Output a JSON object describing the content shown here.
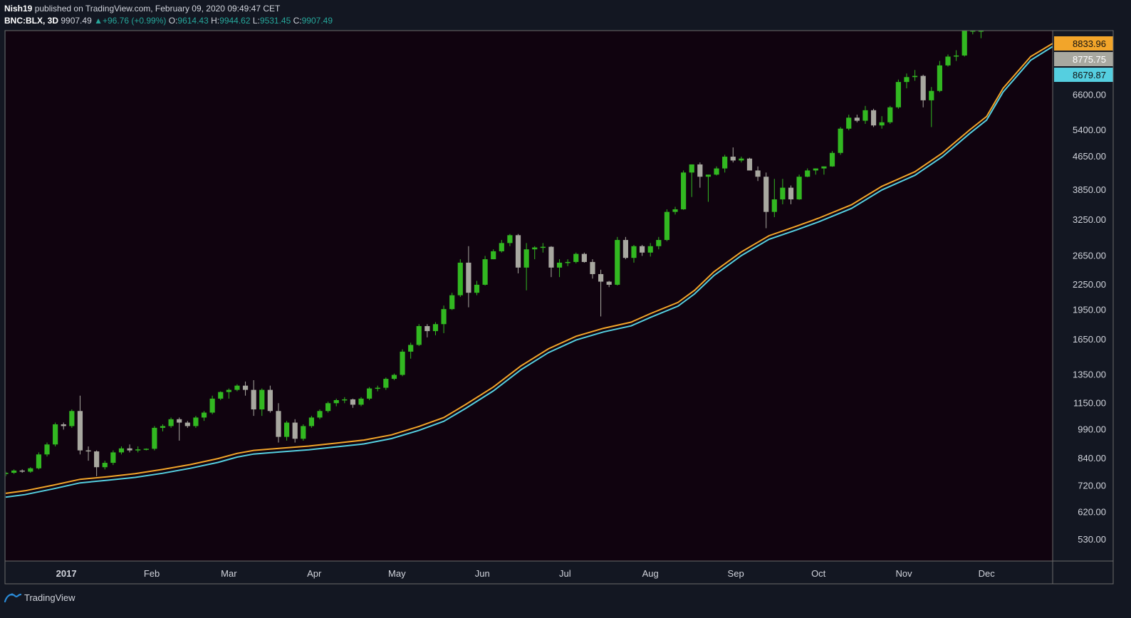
{
  "header": {
    "author": "Nish19",
    "published": "published on TradingView.com, February 09, 2020 09:49:47 CET",
    "symbol": "BNC:BLX, 3D",
    "last": "9907.49",
    "arrow": "▲",
    "change": "+96.76 (+0.99%)",
    "o_label": "O:",
    "o_value": "9614.43",
    "h_label": "H:",
    "h_value": "9944.62",
    "l_label": "L:",
    "l_value": "9531.45",
    "c_label": "C:",
    "c_value": "9907.49"
  },
  "footer": {
    "brand": "TradingView",
    "logo_icon": "tradingview-logo-icon"
  },
  "colors": {
    "background": "#10030f",
    "up": "#32b821",
    "down": "#a8a8a0",
    "ma_fast": "#f2a52a",
    "ma_slow": "#55cfe0",
    "axis_text": "#d1d4dc",
    "border": "#6b6b6b"
  },
  "chart_data": {
    "type": "candlestick",
    "scale": "log",
    "ylim": [
      470,
      9500
    ],
    "y_ticks": [
      "530.00",
      "620.00",
      "720.00",
      "840.00",
      "990.00",
      "1150.00",
      "1350.00",
      "1650.00",
      "1950.00",
      "2250.00",
      "2650.00",
      "3250.00",
      "3850.00",
      "4650.00",
      "5400.00",
      "6600.00"
    ],
    "price_labels": [
      {
        "text": "8833.96",
        "value": 8833.96,
        "series": "ma_fast"
      },
      {
        "text": "8775.75",
        "value": 8775.75,
        "series": "last"
      },
      {
        "text": "8679.87",
        "value": 8679.87,
        "series": "ma_slow"
      }
    ],
    "x_labels": [
      "2017",
      "Feb",
      "Mar",
      "Apr",
      "May",
      "Jun",
      "Jul",
      "Aug",
      "Sep",
      "Oct",
      "Nov",
      "Dec"
    ],
    "x_label_days": [
      0,
      31,
      59,
      90,
      120,
      151,
      181,
      212,
      243,
      273,
      304,
      334
    ],
    "x_range_days": [
      -22,
      358
    ],
    "candles_start_day": -22,
    "candle_interval_days": 3,
    "candles": [
      [
        770,
        780,
        760,
        775
      ],
      [
        775,
        790,
        770,
        785
      ],
      [
        785,
        790,
        775,
        780
      ],
      [
        780,
        800,
        775,
        795
      ],
      [
        795,
        870,
        790,
        860
      ],
      [
        860,
        920,
        850,
        910
      ],
      [
        910,
        1030,
        900,
        1020
      ],
      [
        1020,
        1030,
        990,
        1010
      ],
      [
        1010,
        1110,
        1000,
        1100
      ],
      [
        1100,
        1200,
        860,
        880
      ],
      [
        880,
        900,
        830,
        875
      ],
      [
        875,
        880,
        760,
        800
      ],
      [
        800,
        830,
        790,
        820
      ],
      [
        820,
        880,
        810,
        870
      ],
      [
        870,
        900,
        860,
        890
      ],
      [
        890,
        910,
        870,
        880
      ],
      [
        880,
        900,
        870,
        885
      ],
      [
        885,
        890,
        880,
        888
      ],
      [
        888,
        1010,
        880,
        1000
      ],
      [
        1000,
        1020,
        980,
        1010
      ],
      [
        1010,
        1060,
        1000,
        1050
      ],
      [
        1050,
        1060,
        930,
        1030
      ],
      [
        1030,
        1040,
        1000,
        1010
      ],
      [
        1010,
        1070,
        1000,
        1060
      ],
      [
        1060,
        1100,
        1040,
        1090
      ],
      [
        1090,
        1200,
        1080,
        1180
      ],
      [
        1180,
        1230,
        1170,
        1225
      ],
      [
        1225,
        1250,
        1180,
        1240
      ],
      [
        1240,
        1280,
        1230,
        1270
      ],
      [
        1270,
        1300,
        1200,
        1240
      ],
      [
        1240,
        1310,
        1070,
        1110
      ],
      [
        1110,
        1250,
        1070,
        1240
      ],
      [
        1240,
        1270,
        1090,
        1100
      ],
      [
        1100,
        1150,
        920,
        950
      ],
      [
        950,
        1040,
        930,
        1030
      ],
      [
        1030,
        1050,
        920,
        940
      ],
      [
        940,
        1020,
        930,
        1010
      ],
      [
        1010,
        1070,
        1000,
        1060
      ],
      [
        1060,
        1110,
        1050,
        1100
      ],
      [
        1100,
        1160,
        1090,
        1150
      ],
      [
        1150,
        1180,
        1130,
        1170
      ],
      [
        1170,
        1190,
        1150,
        1175
      ],
      [
        1175,
        1180,
        1120,
        1140
      ],
      [
        1140,
        1190,
        1130,
        1180
      ],
      [
        1180,
        1260,
        1170,
        1250
      ],
      [
        1250,
        1270,
        1230,
        1255
      ],
      [
        1255,
        1330,
        1240,
        1320
      ],
      [
        1320,
        1360,
        1310,
        1350
      ],
      [
        1350,
        1560,
        1340,
        1540
      ],
      [
        1540,
        1620,
        1480,
        1600
      ],
      [
        1600,
        1800,
        1590,
        1780
      ],
      [
        1780,
        1800,
        1670,
        1730
      ],
      [
        1730,
        1820,
        1690,
        1800
      ],
      [
        1800,
        2000,
        1710,
        1960
      ],
      [
        1960,
        2150,
        1950,
        2120
      ],
      [
        2120,
        2600,
        2100,
        2550
      ],
      [
        2550,
        2800,
        1980,
        2150
      ],
      [
        2150,
        2300,
        2120,
        2250
      ],
      [
        2250,
        2650,
        2240,
        2600
      ],
      [
        2600,
        2750,
        2600,
        2720
      ],
      [
        2720,
        2900,
        2700,
        2850
      ],
      [
        2850,
        3000,
        2800,
        2980
      ],
      [
        2980,
        3000,
        2400,
        2480
      ],
      [
        2480,
        2850,
        2180,
        2750
      ],
      [
        2750,
        2800,
        2600,
        2780
      ],
      [
        2780,
        2850,
        2700,
        2790
      ],
      [
        2790,
        2800,
        2350,
        2480
      ],
      [
        2480,
        2600,
        2350,
        2550
      ],
      [
        2550,
        2600,
        2500,
        2560
      ],
      [
        2560,
        2700,
        2540,
        2680
      ],
      [
        2680,
        2700,
        2550,
        2560
      ],
      [
        2560,
        2600,
        2330,
        2390
      ],
      [
        2390,
        2450,
        1880,
        2290
      ],
      [
        2290,
        2300,
        2220,
        2250
      ],
      [
        2250,
        2950,
        2240,
        2900
      ],
      [
        2900,
        2950,
        2600,
        2620
      ],
      [
        2620,
        2820,
        2550,
        2800
      ],
      [
        2800,
        2820,
        2650,
        2700
      ],
      [
        2700,
        2850,
        2640,
        2800
      ],
      [
        2800,
        2950,
        2750,
        2900
      ],
      [
        2900,
        3450,
        2880,
        3400
      ],
      [
        3400,
        3500,
        3350,
        3450
      ],
      [
        3450,
        4300,
        3440,
        4250
      ],
      [
        4250,
        4450,
        3700,
        4450
      ],
      [
        4450,
        4500,
        3900,
        4150
      ],
      [
        4150,
        4200,
        3600,
        4200
      ],
      [
        4200,
        4400,
        4180,
        4350
      ],
      [
        4350,
        4700,
        4250,
        4650
      ],
      [
        4650,
        4900,
        4500,
        4550
      ],
      [
        4550,
        4650,
        4500,
        4600
      ],
      [
        4600,
        4620,
        4350,
        4300
      ],
      [
        4300,
        4400,
        4050,
        4150
      ],
      [
        4150,
        4250,
        3100,
        3400
      ],
      [
        3400,
        4100,
        3300,
        3650
      ],
      [
        3650,
        4100,
        3550,
        3900
      ],
      [
        3900,
        3950,
        3550,
        3650
      ],
      [
        3650,
        4200,
        3640,
        4150
      ],
      [
        4150,
        4350,
        4140,
        4300
      ],
      [
        4300,
        4350,
        4200,
        4350
      ],
      [
        4350,
        4400,
        4200,
        4400
      ],
      [
        4400,
        4800,
        4390,
        4750
      ],
      [
        4750,
        5500,
        4700,
        5450
      ],
      [
        5450,
        5900,
        5400,
        5800
      ],
      [
        5800,
        5900,
        5650,
        5700
      ],
      [
        5700,
        6200,
        5600,
        6050
      ],
      [
        6050,
        6100,
        5500,
        5550
      ],
      [
        5550,
        5850,
        5450,
        5650
      ],
      [
        5650,
        6200,
        5600,
        6150
      ],
      [
        6150,
        7200,
        6100,
        7100
      ],
      [
        7100,
        7450,
        6850,
        7300
      ],
      [
        7300,
        7600,
        7150,
        7350
      ],
      [
        7350,
        7400,
        6150,
        6400
      ],
      [
        6400,
        6900,
        5500,
        6750
      ],
      [
        6750,
        8000,
        6700,
        7800
      ],
      [
        7800,
        8300,
        7750,
        8200
      ],
      [
        8200,
        8500,
        8000,
        8250
      ],
      [
        8250,
        9500,
        8200,
        9500
      ],
      [
        9500,
        9500,
        9300,
        9500
      ],
      [
        9500,
        9500,
        9100,
        9500
      ]
    ],
    "ma_fast_points": [
      [
        -22,
        690
      ],
      [
        -15,
        700
      ],
      [
        -5,
        722
      ],
      [
        5,
        747
      ],
      [
        15,
        758
      ],
      [
        25,
        771
      ],
      [
        35,
        790
      ],
      [
        45,
        812
      ],
      [
        55,
        840
      ],
      [
        62,
        865
      ],
      [
        68,
        880
      ],
      [
        78,
        891
      ],
      [
        88,
        902
      ],
      [
        98,
        917
      ],
      [
        108,
        933
      ],
      [
        118,
        961
      ],
      [
        128,
        1008
      ],
      [
        137,
        1060
      ],
      [
        145,
        1142
      ],
      [
        155,
        1260
      ],
      [
        165,
        1420
      ],
      [
        175,
        1565
      ],
      [
        185,
        1680
      ],
      [
        195,
        1758
      ],
      [
        205,
        1820
      ],
      [
        212,
        1910
      ],
      [
        222,
        2035
      ],
      [
        228,
        2180
      ],
      [
        235,
        2420
      ],
      [
        245,
        2710
      ],
      [
        255,
        2970
      ],
      [
        265,
        3135
      ],
      [
        273,
        3280
      ],
      [
        285,
        3540
      ],
      [
        296,
        3930
      ],
      [
        308,
        4270
      ],
      [
        318,
        4750
      ],
      [
        328,
        5420
      ],
      [
        334,
        5840
      ],
      [
        340,
        6850
      ],
      [
        350,
        8200
      ],
      [
        358,
        8833.96
      ]
    ],
    "ma_slow_points": [
      [
        -22,
        675
      ],
      [
        -15,
        685
      ],
      [
        -5,
        707
      ],
      [
        5,
        732
      ],
      [
        15,
        743
      ],
      [
        25,
        755
      ],
      [
        35,
        773
      ],
      [
        45,
        795
      ],
      [
        55,
        822
      ],
      [
        62,
        847
      ],
      [
        68,
        862
      ],
      [
        78,
        873
      ],
      [
        88,
        883
      ],
      [
        98,
        898
      ],
      [
        108,
        913
      ],
      [
        118,
        941
      ],
      [
        128,
        986
      ],
      [
        137,
        1038
      ],
      [
        145,
        1117
      ],
      [
        155,
        1233
      ],
      [
        165,
        1390
      ],
      [
        175,
        1532
      ],
      [
        185,
        1645
      ],
      [
        195,
        1722
      ],
      [
        205,
        1782
      ],
      [
        212,
        1870
      ],
      [
        222,
        1993
      ],
      [
        228,
        2135
      ],
      [
        235,
        2370
      ],
      [
        245,
        2654
      ],
      [
        255,
        2910
      ],
      [
        265,
        3071
      ],
      [
        273,
        3212
      ],
      [
        285,
        3468
      ],
      [
        296,
        3850
      ],
      [
        308,
        4185
      ],
      [
        318,
        4650
      ],
      [
        328,
        5310
      ],
      [
        334,
        5720
      ],
      [
        340,
        6710
      ],
      [
        350,
        8030
      ],
      [
        358,
        8679.87
      ]
    ]
  }
}
